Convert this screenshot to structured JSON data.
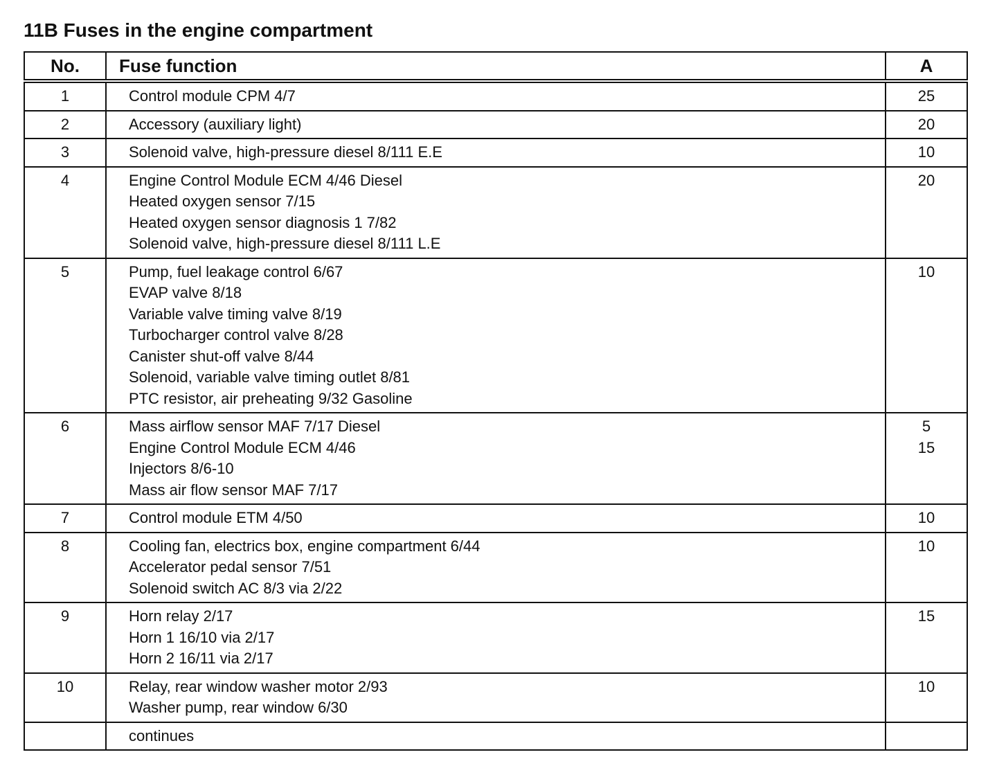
{
  "title": "11B Fuses in the engine compartment",
  "table": {
    "headers": [
      "No.",
      "Fuse function",
      "A"
    ],
    "rows": [
      {
        "no": 1,
        "functions": [
          "Control module CPM 4/7"
        ],
        "amps": [
          25
        ]
      },
      {
        "no": 2,
        "functions": [
          "Accessory (auxiliary light)"
        ],
        "amps": [
          20
        ]
      },
      {
        "no": 3,
        "functions": [
          "Solenoid valve, high-pressure diesel 8/111 E.E"
        ],
        "amps": [
          10
        ]
      },
      {
        "no": 4,
        "functions": [
          "Engine Control Module ECM 4/46 Diesel",
          "Heated oxygen sensor 7/15",
          "Heated oxygen sensor diagnosis 1 7/82",
          "Solenoid valve, high-pressure diesel 8/111 L.E"
        ],
        "amps": [
          20
        ]
      },
      {
        "no": 5,
        "functions": [
          "Pump, fuel leakage control 6/67",
          "EVAP valve 8/18",
          "Variable valve timing valve 8/19",
          "Turbocharger control valve 8/28",
          "Canister shut-off valve 8/44",
          "Solenoid, variable valve timing outlet 8/81",
          "PTC resistor, air preheating 9/32 Gasoline"
        ],
        "amps": [
          10
        ]
      },
      {
        "no": 6,
        "functions": [
          "Mass airflow sensor MAF 7/17 Diesel",
          "Engine Control Module ECM 4/46",
          "Injectors 8/6-10",
          "Mass air flow sensor MAF 7/17"
        ],
        "amps": [
          5,
          15
        ]
      },
      {
        "no": 7,
        "functions": [
          "Control module ETM 4/50"
        ],
        "amps": [
          10
        ]
      },
      {
        "no": 8,
        "functions": [
          "Cooling fan, electrics box, engine compartment 6/44",
          "Accelerator pedal sensor 7/51",
          "Solenoid switch AC 8/3 via 2/22"
        ],
        "amps": [
          10
        ]
      },
      {
        "no": 9,
        "functions": [
          "Horn relay 2/17",
          "Horn 1 16/10 via 2/17",
          "Horn 2 16/11 via 2/17"
        ],
        "amps": [
          15
        ]
      },
      {
        "no": 10,
        "functions": [
          "Relay, rear window washer motor 2/93",
          "Washer pump, rear window 6/30"
        ],
        "amps": [
          10
        ]
      },
      {
        "functions": [
          "continues"
        ]
      }
    ]
  }
}
